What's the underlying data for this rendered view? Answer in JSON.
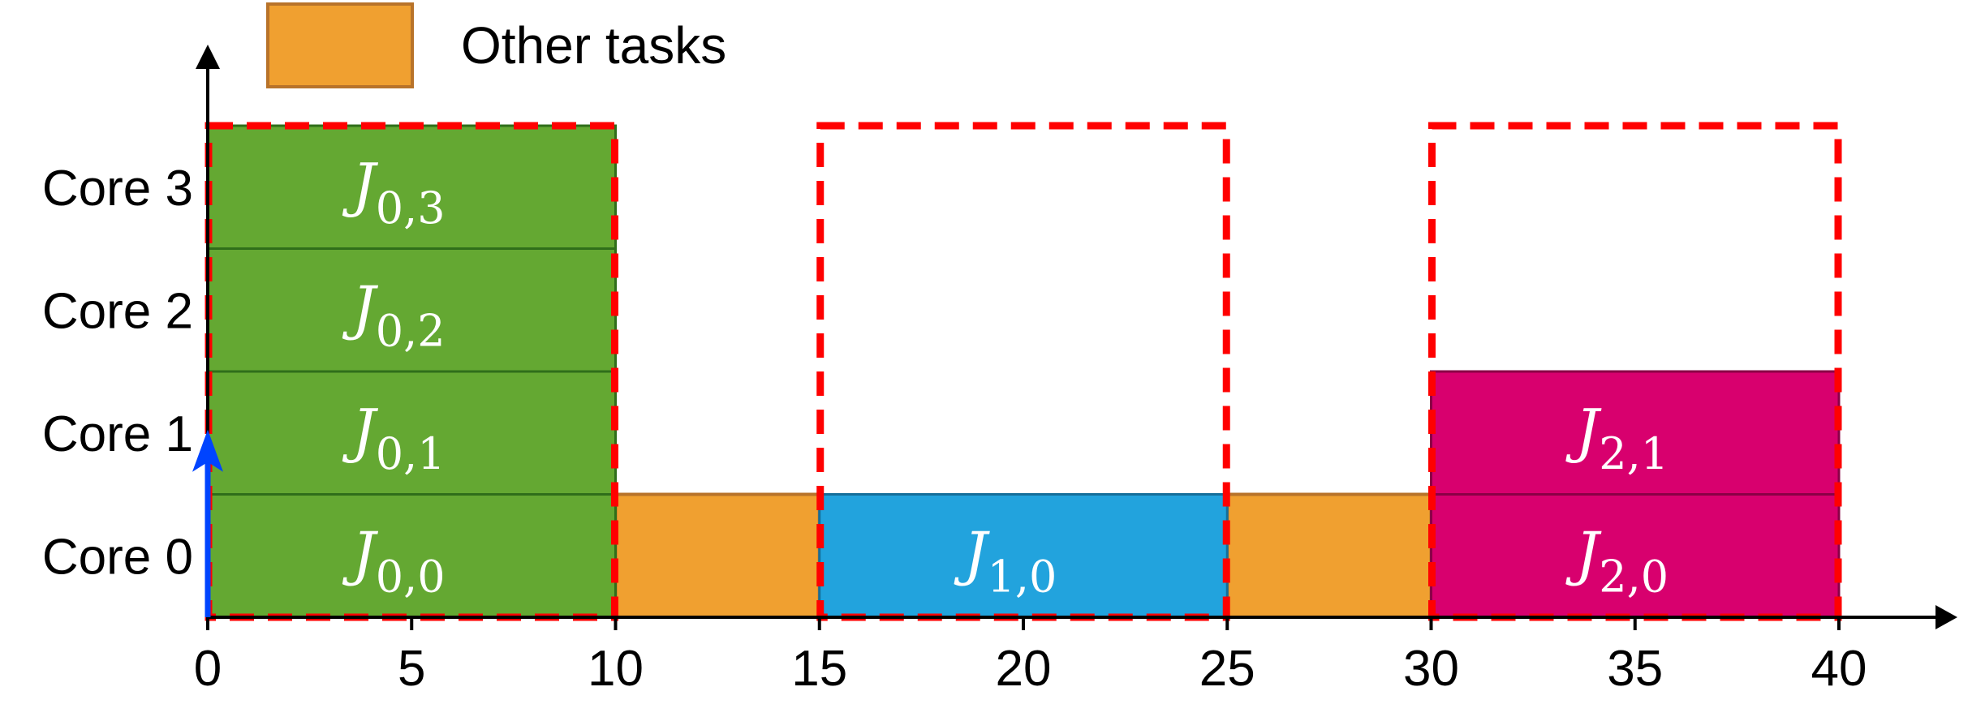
{
  "chart_data": {
    "type": "gantt",
    "x_ticks": [
      0,
      5,
      10,
      15,
      20,
      25,
      30,
      35,
      40
    ],
    "y_categories": [
      "Core 0",
      "Core 1",
      "Core 2",
      "Core 3"
    ],
    "xlim": [
      0,
      42
    ],
    "ylim": [
      0,
      4
    ],
    "legend": {
      "position": "top-left",
      "entries": [
        {
          "label": "Other tasks",
          "color": "#f0a030"
        }
      ]
    },
    "colors": {
      "green": "#64a832",
      "blue": "#22a3dd",
      "magenta": "#d8006e",
      "orange": "#f0a030",
      "deadline": "#ff0000",
      "release": "#0044ff"
    },
    "jobs": [
      {
        "base": "J",
        "sub": "0,0",
        "core": 0,
        "start": 0,
        "end": 10,
        "color": "#64a832"
      },
      {
        "base": "J",
        "sub": "0,1",
        "core": 1,
        "start": 0,
        "end": 10,
        "color": "#64a832"
      },
      {
        "base": "J",
        "sub": "0,2",
        "core": 2,
        "start": 0,
        "end": 10,
        "color": "#64a832"
      },
      {
        "base": "J",
        "sub": "0,3",
        "core": 3,
        "start": 0,
        "end": 10,
        "color": "#64a832"
      },
      {
        "base": "J",
        "sub": "1,0",
        "core": 0,
        "start": 15,
        "end": 25,
        "color": "#22a3dd"
      },
      {
        "base": "J",
        "sub": "2,0",
        "core": 0,
        "start": 30,
        "end": 40,
        "color": "#d8006e"
      },
      {
        "base": "J",
        "sub": "2,1",
        "core": 1,
        "start": 30,
        "end": 40,
        "color": "#d8006e"
      }
    ],
    "other_tasks": [
      {
        "core": 0,
        "start": 10,
        "end": 15
      },
      {
        "core": 0,
        "start": 25,
        "end": 30
      }
    ],
    "reservations": [
      {
        "start": 0,
        "end": 10,
        "core_from": 0,
        "core_to": 4
      },
      {
        "start": 15,
        "end": 25,
        "core_from": 0,
        "core_to": 4
      },
      {
        "start": 30,
        "end": 40,
        "core_from": 0,
        "core_to": 4
      }
    ],
    "release_arrow": {
      "x": 0,
      "core_height": 1.5
    }
  }
}
